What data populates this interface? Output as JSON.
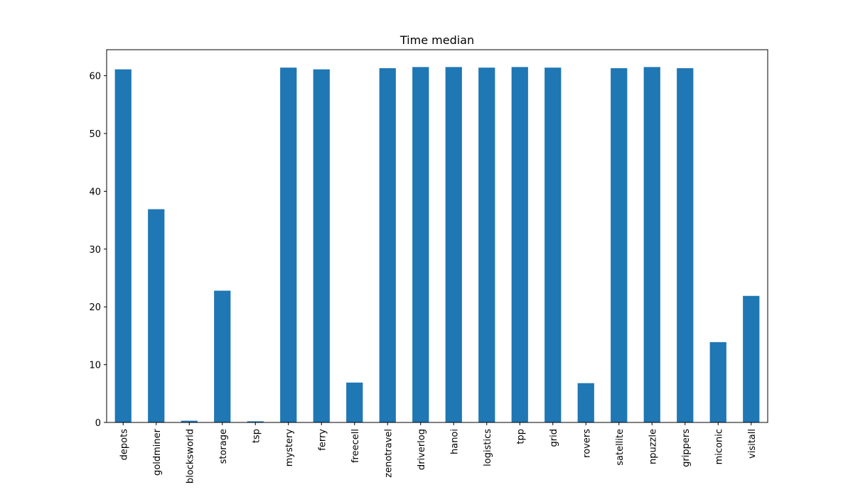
{
  "chart_data": {
    "type": "bar",
    "title": "Time median",
    "xlabel": "",
    "ylabel": "",
    "categories": [
      "depots",
      "goldminer",
      "blocksworld",
      "storage",
      "tsp",
      "mystery",
      "ferry",
      "freecell",
      "zenotravel",
      "driverlog",
      "hanoi",
      "logistics",
      "tpp",
      "grid",
      "rovers",
      "satellite",
      "npuzzle",
      "grippers",
      "miconic",
      "visitall"
    ],
    "values": [
      61.1,
      36.9,
      0.3,
      22.8,
      0.2,
      61.4,
      61.1,
      6.9,
      61.3,
      61.5,
      61.5,
      61.4,
      61.5,
      61.4,
      6.8,
      61.3,
      61.5,
      61.3,
      13.9,
      21.9
    ],
    "ylim": [
      0,
      64.5
    ],
    "yticks": [
      "0",
      "10",
      "20",
      "30",
      "40",
      "50",
      "60"
    ],
    "bar_color": "#1f77b4",
    "grid": false,
    "legend": "none"
  }
}
